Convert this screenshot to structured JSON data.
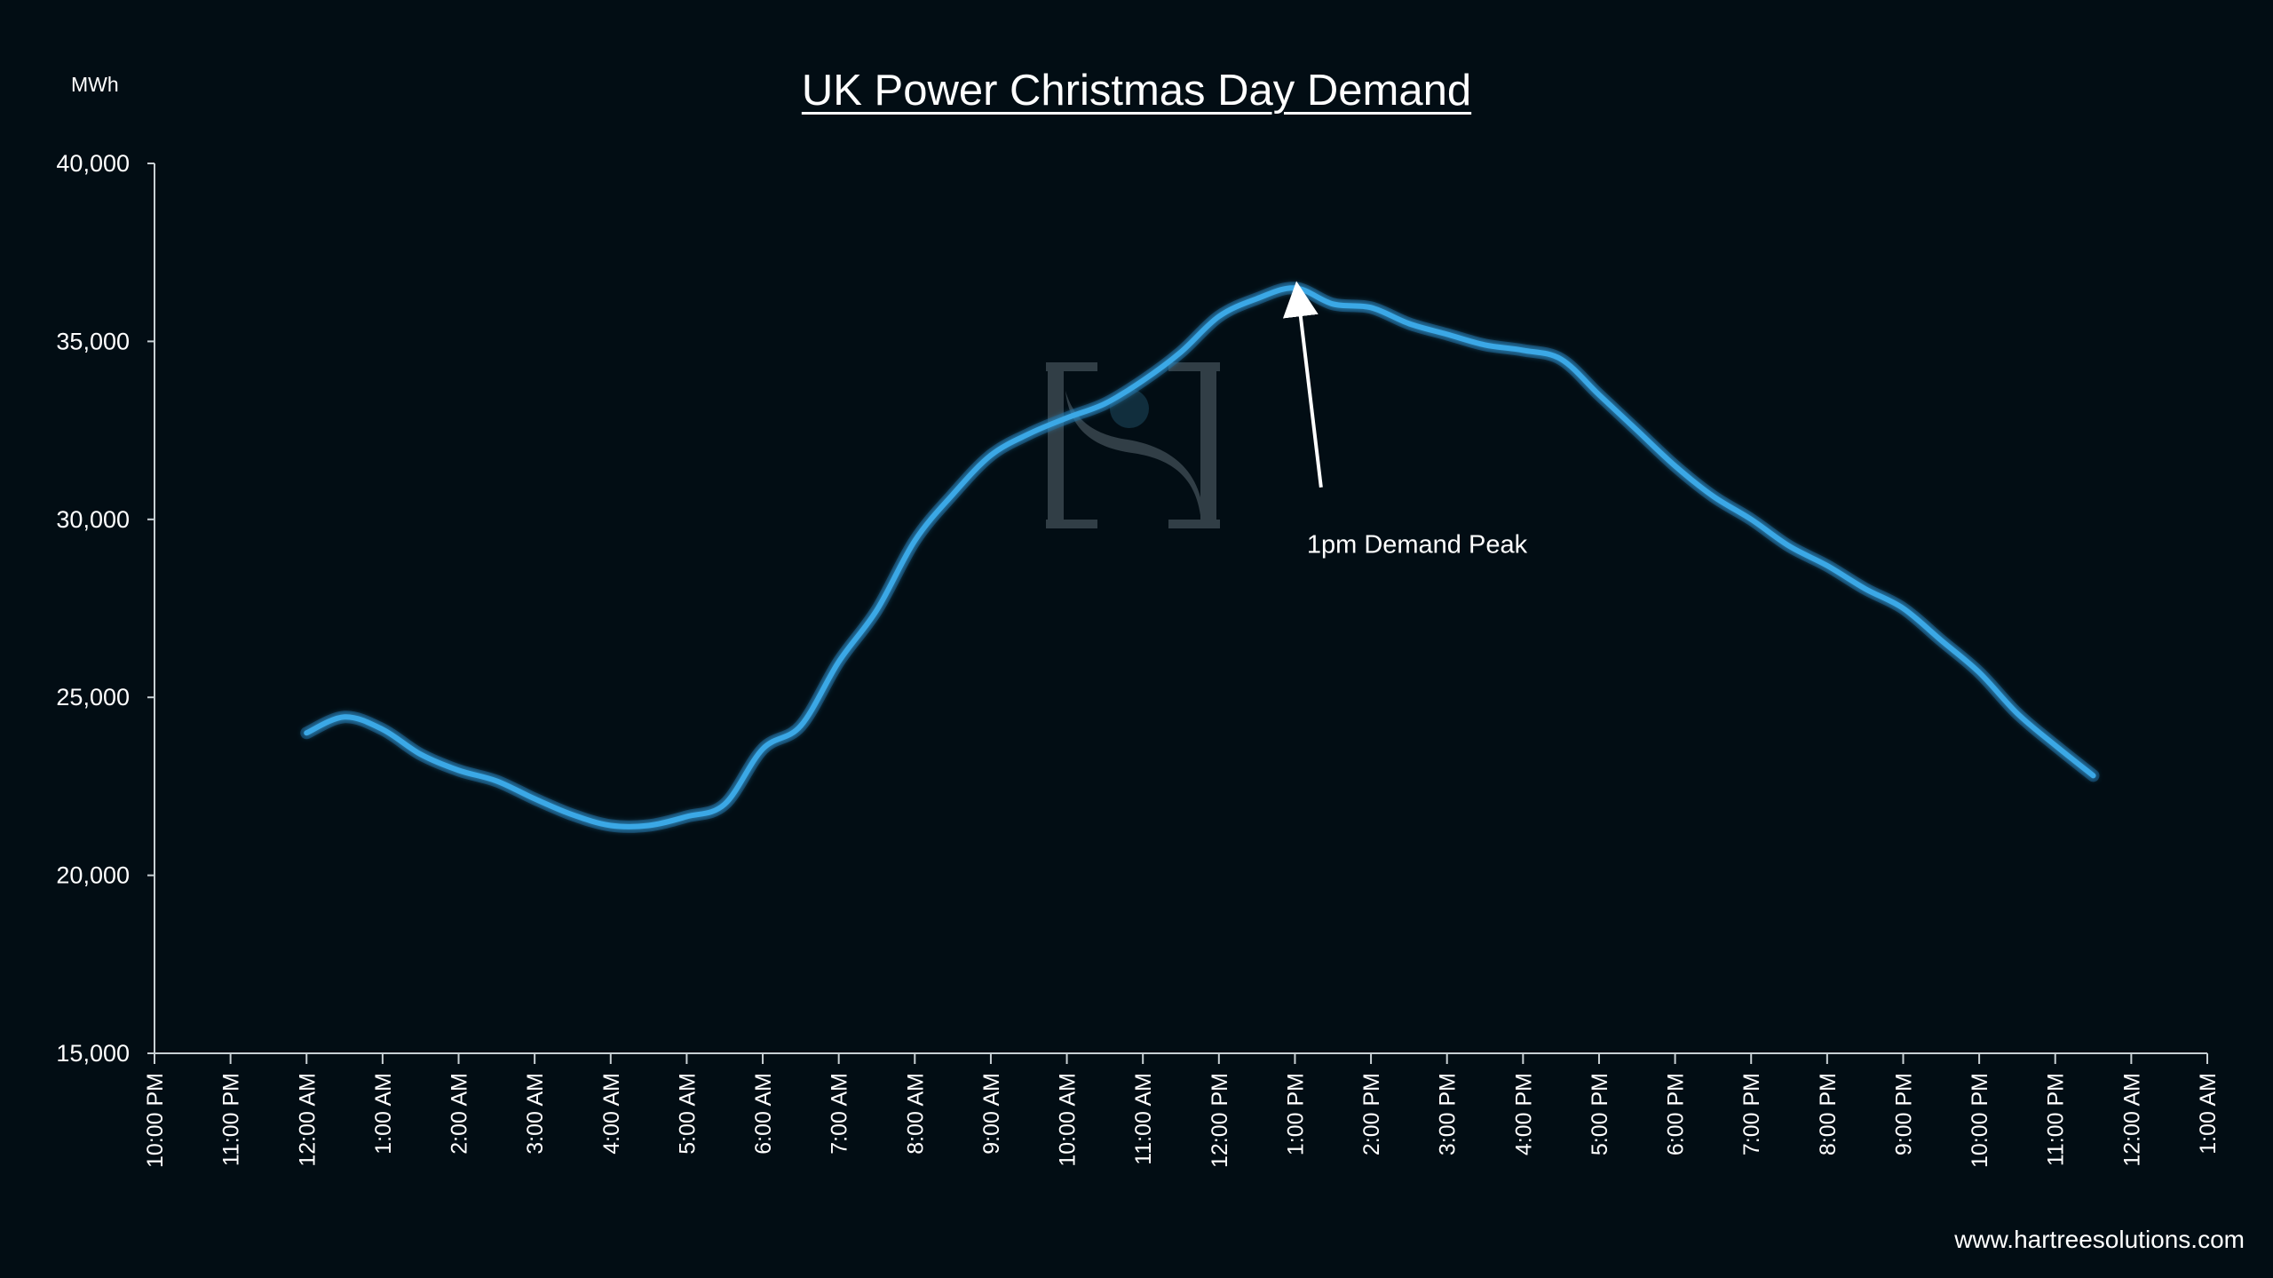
{
  "page": {
    "footer_url": "www.hartreesolutions.com",
    "background": "#020d14",
    "logo_icon": "hartree-h-logo-icon"
  },
  "chart_data": {
    "type": "line",
    "title": "UK Power Christmas Day Demand",
    "ylabel": "MWh",
    "xlabel": "",
    "ylim": [
      15000,
      40000
    ],
    "yticks": [
      15000,
      20000,
      25000,
      30000,
      35000,
      40000
    ],
    "ytick_labels": [
      "15,000",
      "20,000",
      "25,000",
      "30,000",
      "35,000",
      "40,000"
    ],
    "xlim_hours": [
      -2,
      25
    ],
    "xtick_labels": [
      "10:00 PM",
      "11:00 PM",
      "12:00 AM",
      "1:00 AM",
      "2:00 AM",
      "3:00 AM",
      "4:00 AM",
      "5:00 AM",
      "6:00 AM",
      "7:00 AM",
      "8:00 AM",
      "9:00 AM",
      "10:00 AM",
      "11:00 AM",
      "12:00 PM",
      "1:00 PM",
      "2:00 PM",
      "3:00 PM",
      "4:00 PM",
      "5:00 PM",
      "6:00 PM",
      "7:00 PM",
      "8:00 PM",
      "9:00 PM",
      "10:00 PM",
      "11:00 PM",
      "12:00 AM",
      "1:00 AM"
    ],
    "grid": false,
    "line_color": "#3aa8e6",
    "series": [
      {
        "name": "",
        "x_hours": [
          0,
          0.5,
          1,
          1.5,
          2,
          2.5,
          3,
          3.5,
          4,
          4.5,
          5,
          5.5,
          6,
          6.5,
          7,
          7.5,
          8,
          8.5,
          9,
          9.5,
          10,
          10.5,
          11,
          11.5,
          12,
          12.5,
          13,
          13.5,
          14,
          14.5,
          15,
          15.5,
          16,
          16.5,
          17,
          17.5,
          18,
          18.5,
          19,
          19.5,
          20,
          20.5,
          21,
          21.5,
          22,
          22.5,
          23,
          23.5
        ],
        "values": [
          24000,
          24450,
          24100,
          23400,
          22950,
          22650,
          22150,
          21700,
          21400,
          21400,
          21650,
          22000,
          23550,
          24200,
          26000,
          27450,
          29400,
          30700,
          31800,
          32400,
          32850,
          33250,
          33900,
          34700,
          35700,
          36200,
          36500,
          36050,
          35950,
          35500,
          35200,
          34900,
          34750,
          34500,
          33500,
          32500,
          31500,
          30650,
          30000,
          29250,
          28700,
          28050,
          27500,
          26600,
          25700,
          24550,
          23650,
          22800
        ]
      }
    ],
    "annotations": [
      {
        "text": "1pm Demand Peak",
        "point_x_hours": 13.0,
        "point_value": 36000,
        "label_x_hours": 13.25,
        "label_value": 30850
      }
    ]
  }
}
